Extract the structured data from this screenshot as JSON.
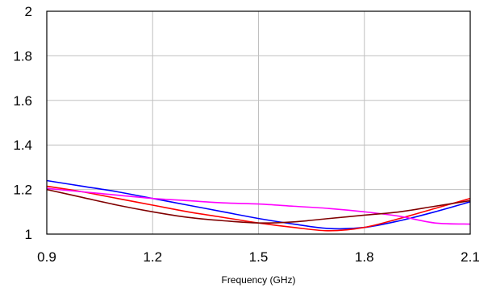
{
  "chart_data": {
    "type": "line",
    "title": "",
    "xlabel": "Frequency (GHz)",
    "ylabel": "",
    "xlim": [
      0.9,
      2.1
    ],
    "ylim": [
      1,
      2
    ],
    "xticks": [
      0.9,
      1.2,
      1.5,
      1.8,
      2.1
    ],
    "xtick_labels": [
      "0.9",
      "1.2",
      "1.5",
      "1.8",
      "2.1"
    ],
    "yticks": [
      1,
      1.2,
      1.4,
      1.6,
      1.8,
      2
    ],
    "ytick_labels": [
      "1",
      "1.2",
      "1.4",
      "1.6",
      "1.8",
      "2"
    ],
    "grid": true,
    "legend": "none",
    "series": [
      {
        "color": "#0000ff",
        "x": [
          0.9,
          1.0,
          1.1,
          1.2,
          1.3,
          1.4,
          1.5,
          1.6,
          1.7,
          1.8,
          1.9,
          2.0,
          2.1
        ],
        "y": [
          1.24,
          1.215,
          1.19,
          1.16,
          1.13,
          1.1,
          1.07,
          1.045,
          1.025,
          1.03,
          1.06,
          1.1,
          1.145
        ]
      },
      {
        "color": "#ff0000",
        "x": [
          0.9,
          1.0,
          1.1,
          1.2,
          1.3,
          1.4,
          1.5,
          1.6,
          1.7,
          1.8,
          1.9,
          2.0,
          2.1
        ],
        "y": [
          1.215,
          1.19,
          1.16,
          1.13,
          1.1,
          1.075,
          1.05,
          1.03,
          1.015,
          1.03,
          1.07,
          1.115,
          1.16
        ]
      },
      {
        "color": "#ff00ff",
        "x": [
          0.9,
          1.0,
          1.1,
          1.2,
          1.3,
          1.4,
          1.5,
          1.6,
          1.7,
          1.8,
          1.9,
          2.0,
          2.1
        ],
        "y": [
          1.205,
          1.19,
          1.175,
          1.16,
          1.15,
          1.14,
          1.135,
          1.125,
          1.115,
          1.1,
          1.08,
          1.05,
          1.045
        ]
      },
      {
        "color": "#800000",
        "x": [
          0.9,
          1.0,
          1.1,
          1.2,
          1.3,
          1.4,
          1.5,
          1.6,
          1.7,
          1.8,
          1.9,
          2.0,
          2.1
        ],
        "y": [
          1.2,
          1.165,
          1.13,
          1.1,
          1.075,
          1.06,
          1.05,
          1.055,
          1.07,
          1.085,
          1.1,
          1.125,
          1.15
        ]
      }
    ]
  }
}
